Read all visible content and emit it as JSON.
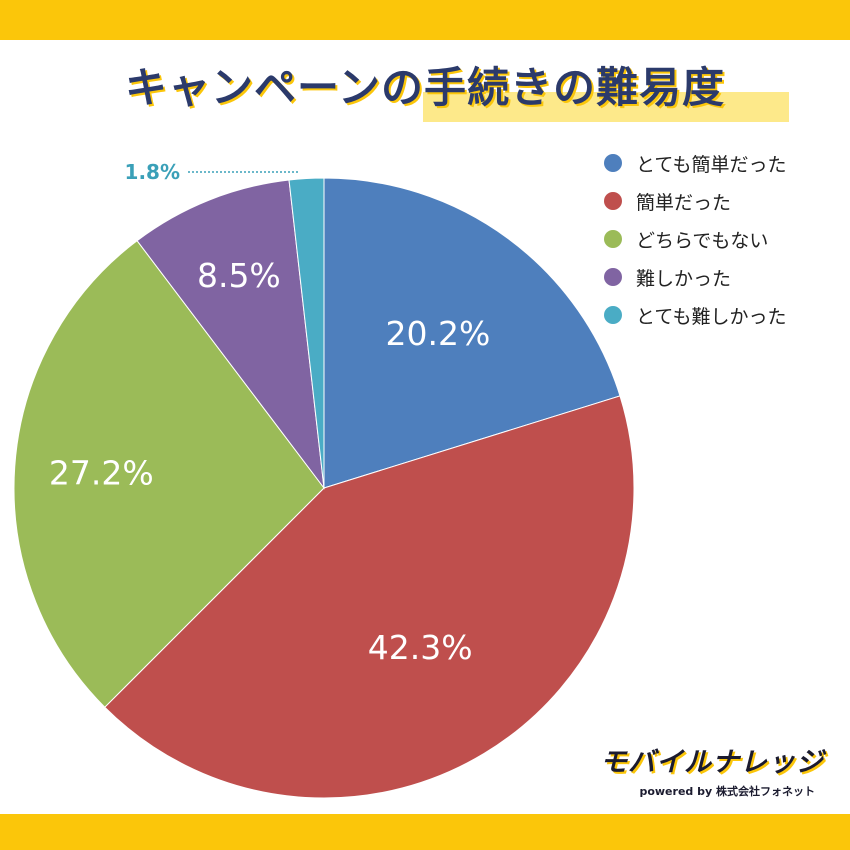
{
  "title": "キャンペーンの手続きの難易度",
  "chart_data": {
    "type": "pie",
    "categories": [
      "とても簡単だった",
      "簡単だった",
      "どちらでもない",
      "難しかった",
      "とても難しかった"
    ],
    "values": [
      20.2,
      42.3,
      27.2,
      8.5,
      1.8
    ],
    "labels": [
      "20.2%",
      "42.3%",
      "27.2%",
      "8.5%",
      "1.8%"
    ],
    "colors": [
      "#4e7fbd",
      "#bf4f4d",
      "#9bbb58",
      "#8064a2",
      "#4aacc5"
    ],
    "label_colors": [
      "#ffffff",
      "#ffffff",
      "#ffffff",
      "#ffffff",
      "#3aa0b8"
    ],
    "start_angle_deg": 0,
    "direction": "clockwise",
    "legend_position": "top-right"
  },
  "logo": {
    "main": "モバイルナレッジ",
    "sub": "powered by 株式会社フォネット"
  }
}
